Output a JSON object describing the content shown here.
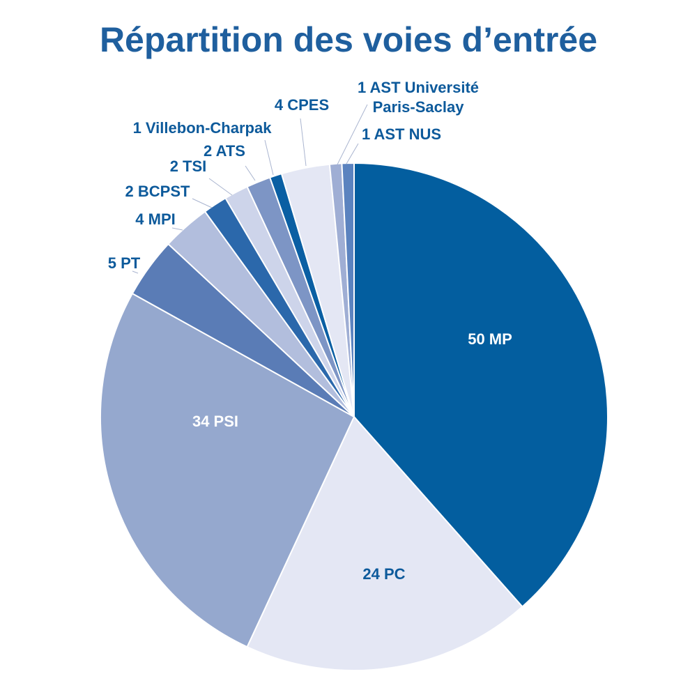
{
  "chart_data": {
    "type": "pie",
    "title": "Répartition des voies d’entrée",
    "slices": [
      {
        "label": "50 MP",
        "value": 50,
        "color": "#035e9f"
      },
      {
        "label": "24 PC",
        "value": 24,
        "color": "#e4e7f4"
      },
      {
        "label": "34 PSI",
        "value": 34,
        "color": "#95a8ce"
      },
      {
        "label": "5 PT",
        "value": 5,
        "color": "#5a7cb6"
      },
      {
        "label": "4 MPI",
        "value": 4,
        "color": "#b2bedd"
      },
      {
        "label": "2 BCPST",
        "value": 2,
        "color": "#2b68ab"
      },
      {
        "label": "2 TSI",
        "value": 2,
        "color": "#cdd4ea"
      },
      {
        "label": "2 ATS",
        "value": 2,
        "color": "#7d95c5"
      },
      {
        "label": "1 Villebon-Charpak",
        "value": 1,
        "color": "#0a5fa3"
      },
      {
        "label": "4 CPES",
        "value": 4,
        "color": "#e4e7f4"
      },
      {
        "label": "1 AST Université Paris-Saclay",
        "value": 1,
        "color": "#9faed4"
      },
      {
        "label": "1 AST NUS",
        "value": 1,
        "color": "#5b83bf"
      }
    ]
  }
}
